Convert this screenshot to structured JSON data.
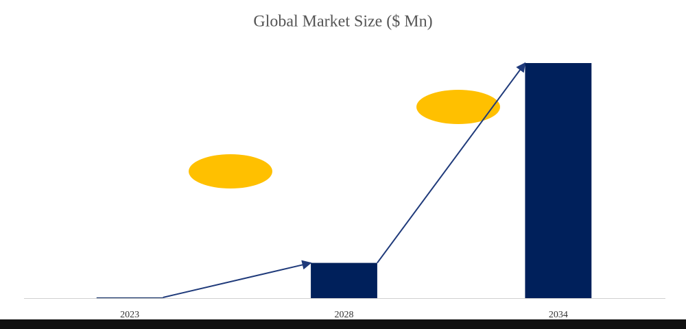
{
  "chart_data": {
    "type": "bar",
    "title": "Global Market Size ($ Mn)",
    "categories": [
      "2023",
      "2028",
      "2034"
    ],
    "values": [
      0.3,
      15,
      100
    ],
    "color": "#00205b",
    "ylim": [
      0,
      100
    ]
  }
}
